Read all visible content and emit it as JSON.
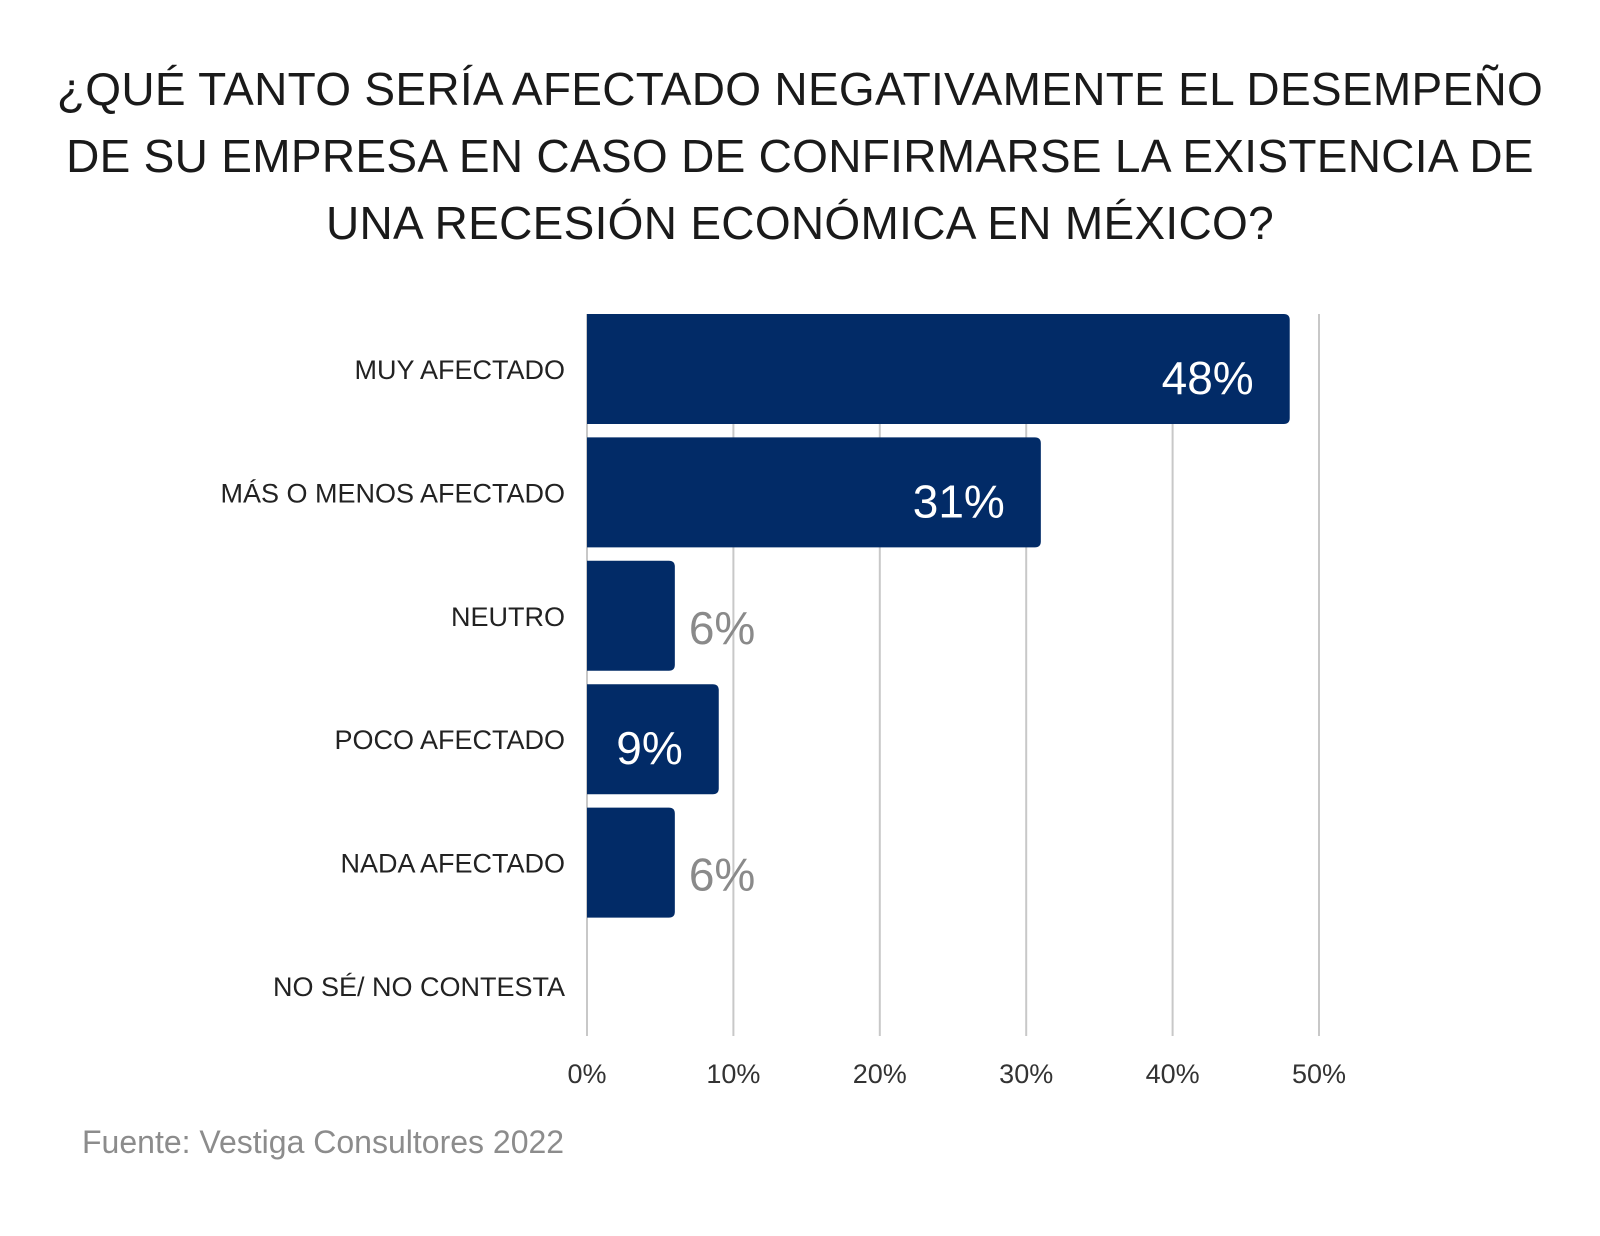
{
  "title_lines": [
    "¿QUÉ TANTO SERÍA AFECTADO NEGATIVAMENTE EL DESEMPEÑO",
    "DE SU EMPRESA EN CASO DE CONFIRMARSE LA EXISTENCIA DE",
    "UNA RECESIÓN ECONÓMICA EN MÉXICO?"
  ],
  "source": "Fuente: Vestiga Consultores 2022",
  "colors": {
    "bar": "#022b67",
    "label_inside": "#ffffff",
    "label_outside": "#8a8a8a",
    "grid": "#c8c8c8",
    "category_text": "#222222",
    "tick_text": "#333333"
  },
  "chart_data": {
    "type": "bar",
    "orientation": "horizontal",
    "title": "¿QUÉ TANTO SERÍA AFECTADO NEGATIVAMENTE EL DESEMPEÑO DE SU EMPRESA EN CASO DE CONFIRMARSE LA EXISTENCIA DE UNA RECESIÓN ECONÓMICA EN MÉXICO?",
    "categories": [
      "MUY AFECTADO",
      "MÁS O MENOS AFECTADO",
      "NEUTRO",
      "POCO AFECTADO",
      "NADA AFECTADO",
      "NO SÉ/ NO CONTESTA"
    ],
    "values": [
      48,
      31,
      6,
      9,
      6,
      0
    ],
    "data_labels": [
      "48%",
      "31%",
      "6%",
      "9%",
      "6%",
      ""
    ],
    "label_inside": [
      true,
      true,
      false,
      true,
      false,
      false
    ],
    "xlim": [
      0,
      50
    ],
    "xticks": [
      0,
      10,
      20,
      30,
      40,
      50
    ],
    "xtick_labels": [
      "0%",
      "10%",
      "20%",
      "30%",
      "40%",
      "50%"
    ],
    "grid": "vertical",
    "xlabel": "",
    "ylabel": ""
  }
}
